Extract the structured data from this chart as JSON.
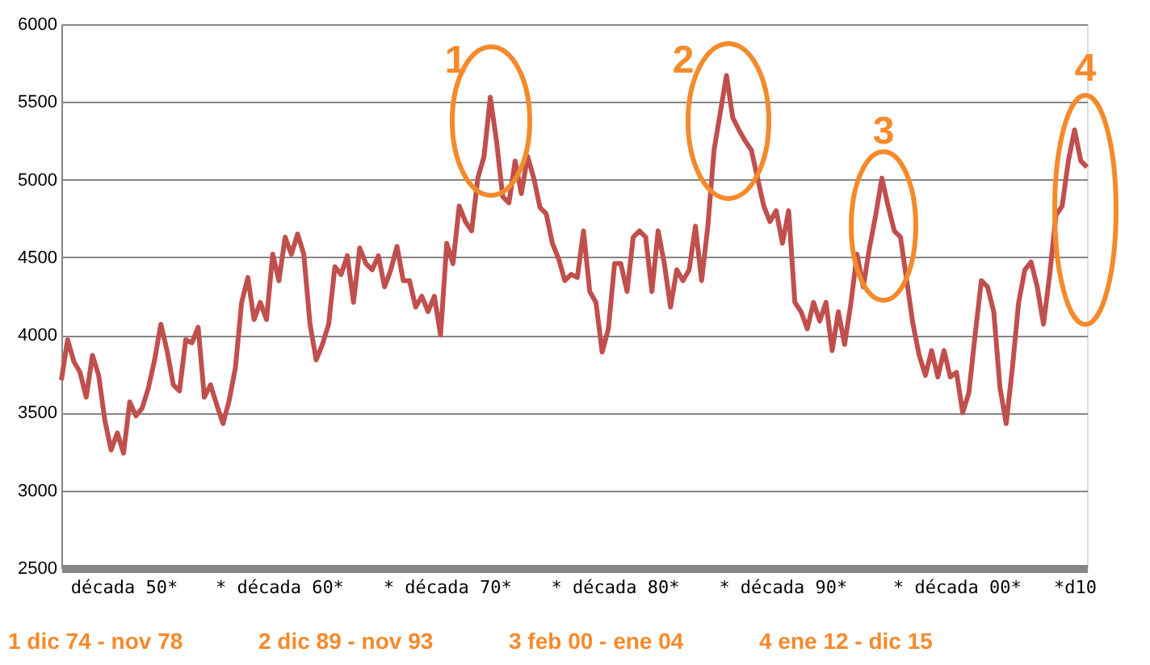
{
  "chart_data": {
    "type": "line",
    "categories": [
      null,
      null,
      null,
      null,
      null,
      null,
      null,
      null,
      null,
      null,
      "década 50*",
      null,
      null,
      null,
      null,
      null,
      null,
      null,
      null,
      null,
      null,
      null,
      null,
      null,
      null,
      null,
      null,
      null,
      null,
      null,
      null,
      null,
      null,
      null,
      null,
      "* década 60*",
      null,
      null,
      null,
      null,
      null,
      null,
      null,
      null,
      null,
      null,
      null,
      null,
      null,
      null,
      null,
      null,
      null,
      null,
      null,
      null,
      null,
      null,
      null,
      null,
      null,
      null,
      "* década 70*",
      null,
      null,
      null,
      null,
      null,
      null,
      null,
      null,
      null,
      null,
      null,
      null,
      null,
      null,
      null,
      null,
      null,
      null,
      null,
      null,
      null,
      null,
      null,
      null,
      null,
      null,
      "* década 80*",
      null,
      null,
      null,
      null,
      null,
      null,
      null,
      null,
      null,
      null,
      null,
      null,
      null,
      null,
      null,
      null,
      null,
      null,
      null,
      null,
      null,
      null,
      null,
      null,
      null,
      null,
      "* década 90*",
      null,
      null,
      null,
      null,
      null,
      null,
      null,
      null,
      null,
      null,
      null,
      null,
      null,
      null,
      null,
      null,
      null,
      null,
      null,
      null,
      null,
      null,
      null,
      null,
      null,
      null,
      null,
      "* década 00*",
      null,
      null,
      null,
      null,
      null,
      null,
      null,
      null,
      null,
      null,
      null,
      null,
      null,
      null,
      null,
      null,
      null,
      null,
      "*d10",
      null,
      null
    ],
    "series": [
      {
        "color": "#c0504d",
        "values": [
          3710,
          3970,
          3830,
          3760,
          3600,
          3870,
          3740,
          3450,
          3260,
          3370,
          3240,
          3570,
          3480,
          3530,
          3660,
          3840,
          4070,
          3900,
          3680,
          3640,
          3970,
          3950,
          4050,
          3600,
          3680,
          3550,
          3430,
          3580,
          3790,
          4210,
          4370,
          4100,
          4210,
          4100,
          4520,
          4350,
          4630,
          4520,
          4650,
          4520,
          4070,
          3840,
          3940,
          4070,
          4440,
          4390,
          4510,
          4210,
          4560,
          4460,
          4420,
          4510,
          4310,
          4420,
          4570,
          4350,
          4350,
          4180,
          4250,
          4150,
          4250,
          4000,
          4590,
          4460,
          4830,
          4730,
          4670,
          5010,
          5150,
          5530,
          5250,
          4890,
          4850,
          5120,
          4910,
          5150,
          5010,
          4820,
          4780,
          4590,
          4490,
          4350,
          4390,
          4370,
          4670,
          4280,
          4210,
          3890,
          4040,
          4460,
          4460,
          4280,
          4630,
          4670,
          4630,
          4280,
          4670,
          4460,
          4180,
          4420,
          4350,
          4420,
          4700,
          4350,
          4700,
          5190,
          5430,
          5670,
          5400,
          5320,
          5250,
          5190,
          5010,
          4830,
          4730,
          4800,
          4590,
          4800,
          4210,
          4150,
          4040,
          4210,
          4090,
          4210,
          3900,
          4150,
          3940,
          4200,
          4520,
          4310,
          4560,
          4770,
          5010,
          4830,
          4670,
          4630,
          4350,
          4070,
          3870,
          3740,
          3900,
          3730,
          3900,
          3730,
          3760,
          3500,
          3630,
          4000,
          4350,
          4310,
          4150,
          3660,
          3430,
          3790,
          4210,
          4420,
          4470,
          4310,
          4070,
          4390,
          4770,
          4830,
          5120,
          5320,
          5120,
          5080
        ]
      }
    ],
    "ylim": [
      2500,
      6000
    ],
    "yticks": [
      2500,
      3000,
      3500,
      4000,
      4500,
      5000,
      5500,
      6000
    ],
    "grid": "y",
    "annotations": [
      "1",
      "2",
      "3",
      "4",
      "1  dic 74 - nov 78",
      "2  dic 89 - nov 93",
      "3  feb 00 - ene 04",
      "4  ene 12 - dic 15"
    ]
  }
}
